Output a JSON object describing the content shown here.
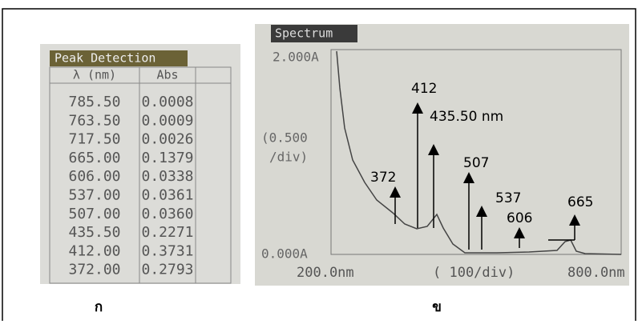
{
  "table": {
    "title": "Peak Detection",
    "headers": [
      "λ (nm)",
      "Abs"
    ],
    "rows": [
      [
        "785.50",
        "0.0008"
      ],
      [
        "763.50",
        "0.0009"
      ],
      [
        "717.50",
        "0.0026"
      ],
      [
        "665.00",
        "0.1379"
      ],
      [
        "606.00",
        "0.0338"
      ],
      [
        "537.00",
        "0.0361"
      ],
      [
        "507.00",
        "0.0360"
      ],
      [
        "435.50",
        "0.2271"
      ],
      [
        "412.00",
        "0.3731"
      ],
      [
        "372.00",
        "0.2793"
      ]
    ],
    "caption": "ก"
  },
  "spectrum": {
    "title": "Spectrum",
    "y_top": "2.000A",
    "y_scale": [
      "(0.500",
      "/div)"
    ],
    "y_bottom": "0.000A",
    "x_left": "200.0nm",
    "x_scale": "( 100/div)",
    "x_right": "800.0nm",
    "annotations": [
      "412",
      "435.50 nm",
      "372",
      "507",
      "537",
      "606",
      "665"
    ],
    "caption": "ข"
  }
}
